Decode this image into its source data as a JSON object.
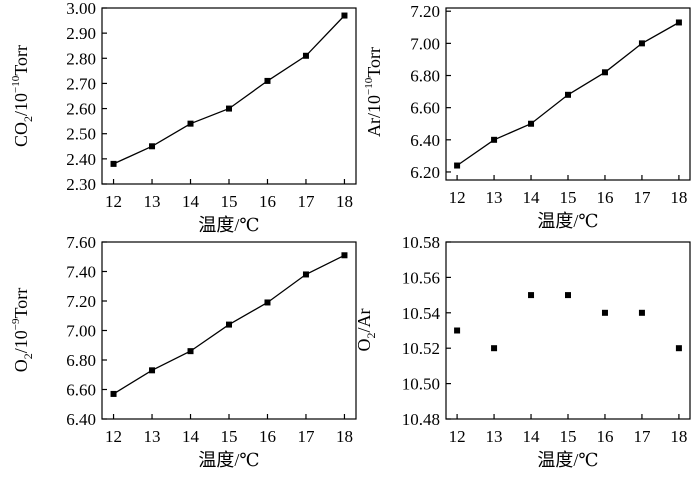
{
  "chart_data": [
    {
      "type": "line",
      "ylabel": {
        "base": "CO",
        "sub": "2",
        "mid": "/10",
        "sup": "−10",
        "unit": "Torr"
      },
      "xlabel": "温度/℃",
      "x": [
        12,
        13,
        14,
        15,
        16,
        17,
        18
      ],
      "values": [
        2.38,
        2.45,
        2.54,
        2.6,
        2.71,
        2.81,
        2.97
      ],
      "xlim": [
        11.7,
        18.3
      ],
      "ylim": [
        2.3,
        3.0
      ],
      "yticks": [
        "2.30",
        "2.40",
        "2.50",
        "2.60",
        "2.70",
        "2.80",
        "2.90",
        "3.00"
      ],
      "xticks": [
        "12",
        "13",
        "14",
        "15",
        "16",
        "17",
        "18"
      ],
      "markers": true,
      "line": true
    },
    {
      "type": "line",
      "ylabel": {
        "base": "Ar",
        "sub": "",
        "mid": "/10",
        "sup": "−10",
        "unit": "Torr"
      },
      "xlabel": "温度/℃",
      "x": [
        12,
        13,
        14,
        15,
        16,
        17,
        18
      ],
      "values": [
        6.24,
        6.4,
        6.5,
        6.68,
        6.82,
        7.0,
        7.13
      ],
      "xlim": [
        11.7,
        18.3
      ],
      "ylim": [
        6.15,
        7.22
      ],
      "yticks": [
        "6.20",
        "6.40",
        "6.60",
        "6.80",
        "7.00",
        "7.20"
      ],
      "xticks": [
        "12",
        "13",
        "14",
        "15",
        "16",
        "17",
        "18"
      ],
      "markers": true,
      "line": true
    },
    {
      "type": "line",
      "ylabel": {
        "base": "O",
        "sub": "2",
        "mid": "/10",
        "sup": "−9",
        "unit": "Torr"
      },
      "xlabel": "温度/℃",
      "x": [
        12,
        13,
        14,
        15,
        16,
        17,
        18
      ],
      "values": [
        6.57,
        6.73,
        6.86,
        7.04,
        7.19,
        7.38,
        7.51
      ],
      "xlim": [
        11.7,
        18.3
      ],
      "ylim": [
        6.4,
        7.6
      ],
      "yticks": [
        "6.40",
        "6.60",
        "6.80",
        "7.00",
        "7.20",
        "7.40",
        "7.60"
      ],
      "xticks": [
        "12",
        "13",
        "14",
        "15",
        "16",
        "17",
        "18"
      ],
      "markers": true,
      "line": true
    },
    {
      "type": "scatter",
      "ylabel": {
        "base": "O",
        "sub": "2",
        "mid": "/Ar",
        "sup": "",
        "unit": ""
      },
      "xlabel": "温度/℃",
      "x": [
        12,
        13,
        14,
        15,
        16,
        17,
        18
      ],
      "values": [
        10.53,
        10.52,
        10.55,
        10.55,
        10.54,
        10.54,
        10.52
      ],
      "xlim": [
        11.7,
        18.3
      ],
      "ylim": [
        10.48,
        10.58
      ],
      "yticks": [
        "10.48",
        "10.50",
        "10.52",
        "10.54",
        "10.56",
        "10.58"
      ],
      "xticks": [
        "12",
        "13",
        "14",
        "15",
        "16",
        "17",
        "18"
      ],
      "markers": true,
      "line": false
    }
  ]
}
